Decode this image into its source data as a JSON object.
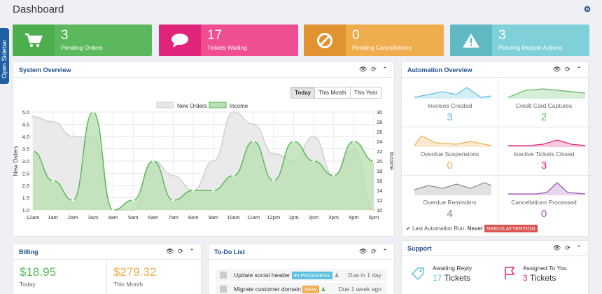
{
  "header": {
    "title": "Dashboard"
  },
  "sidebar_tab": {
    "label": "Open Sidebar"
  },
  "stats": [
    {
      "value": "3",
      "label": "Pending Orders",
      "color": "#5cb85c",
      "dark": "#4cae4c",
      "icon": "cart-icon"
    },
    {
      "value": "17",
      "label": "Tickets Waiting",
      "color": "#ef4f92",
      "dark": "#e0237b",
      "icon": "chat-bubble-icon"
    },
    {
      "value": "0",
      "label": "Pending Cancellations",
      "color": "#f0ad4e",
      "dark": "#e09330",
      "icon": "cancel-icon"
    },
    {
      "value": "3",
      "label": "Pending Module Actions",
      "color": "#7fd0d9",
      "dark": "#5fb8c2",
      "icon": "warning-icon"
    }
  ],
  "system_overview": {
    "title": "System Overview",
    "range_buttons": [
      "Today",
      "This Month",
      "This Year"
    ],
    "active_range": "Today"
  },
  "chart_data": {
    "type": "area",
    "legend": [
      "New Orders",
      "Income"
    ],
    "legend_position": "top-center",
    "x": [
      "12am",
      "1am",
      "2am",
      "3am",
      "4am",
      "5am",
      "6am",
      "7am",
      "8am",
      "9am",
      "10am",
      "11am",
      "12pm",
      "1pm",
      "2pm",
      "3pm",
      "4pm",
      "5pm"
    ],
    "ylabel": "New Orders",
    "ylabel_right": "Income",
    "ylim": [
      1.0,
      5.0
    ],
    "yticks": [
      "1.0",
      "1.5",
      "2.0",
      "2.5",
      "3.0",
      "3.5",
      "4.0",
      "4.5",
      "5.0"
    ],
    "ylim_right": [
      10,
      30
    ],
    "yticks_right": [
      "10",
      "12",
      "14",
      "16",
      "18",
      "20",
      "22",
      "24",
      "26",
      "28",
      "30"
    ],
    "grid": true,
    "series": [
      {
        "name": "New Orders",
        "axis": "left",
        "color": "#cfcfcf",
        "fill": "#e8e8e8",
        "values": [
          4.8,
          4.6,
          4.0,
          4.0,
          1.0,
          1.0,
          3.0,
          2.4,
          1.8,
          3.0,
          5.0,
          4.5,
          3.3,
          3.0,
          4.0,
          2.4,
          3.5,
          1.0
        ]
      },
      {
        "name": "Income",
        "axis": "right",
        "color": "#5cb85c",
        "fill": "#b8dfb0",
        "values": [
          22,
          16,
          12,
          30,
          10,
          12,
          20,
          12,
          14,
          14,
          17,
          24,
          16,
          24,
          20,
          17,
          24,
          20
        ]
      }
    ]
  },
  "automation": {
    "title": "Automation Overview",
    "cells": [
      {
        "label": "Invoices Created",
        "value": "3",
        "color": "#5bc0de",
        "icon": "invoices-sparkline"
      },
      {
        "label": "Credit Card Captures",
        "value": "2",
        "color": "#5cb85c",
        "icon": "captures-sparkline"
      },
      {
        "label": "Overdue Suspensions",
        "value": "0",
        "color": "#f0ad4e",
        "icon": "suspensions-sparkline"
      },
      {
        "label": "Inactive Tickets Closed",
        "value": "3",
        "color": "#e0237b",
        "icon": "tickets-sparkline"
      },
      {
        "label": "Overdue Reminders",
        "value": "4",
        "color": "#888888",
        "icon": "reminders-sparkline"
      },
      {
        "label": "Cancellations Processed",
        "value": "0",
        "color": "#9b59b6",
        "icon": "cancellations-sparkline"
      }
    ],
    "last_run_label": "Last Automation Run:",
    "last_run_value": "Never",
    "last_run_badge": "NEEDS ATTENTION"
  },
  "billing": {
    "title": "Billing",
    "today_amount": "$18.95",
    "today_label": "Today",
    "month_amount": "$279.32",
    "month_label": "This Month"
  },
  "todo": {
    "title": "To-Do List",
    "items": [
      {
        "text": "Update social header",
        "badge": "IN PROGRESS",
        "badge_color": "#5bc0de",
        "due": "Due in 1 day"
      },
      {
        "text": "Migrate customer domain",
        "badge": "NEW",
        "badge_color": "#f0ad4e",
        "due": "Due 1 week ago"
      }
    ]
  },
  "support": {
    "title": "Support",
    "awaiting_label": "Awaiting Reply",
    "awaiting_value": "17",
    "awaiting_unit": "Tickets",
    "assigned_label": "Assigned To You",
    "assigned_value": "3",
    "assigned_unit": "Tickets"
  }
}
